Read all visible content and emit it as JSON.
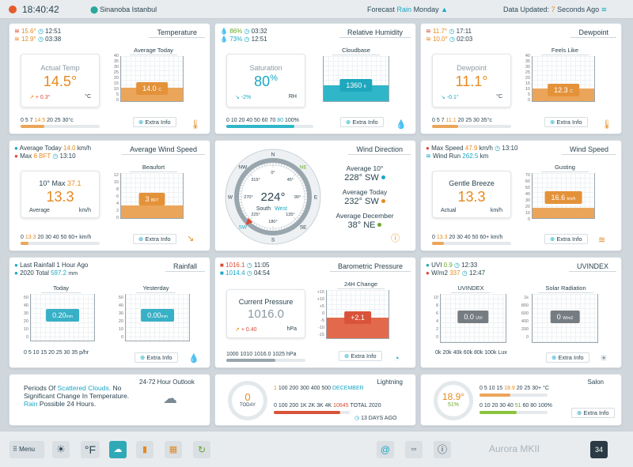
{
  "top": {
    "time": "18:40:42",
    "location": "Sinanoba Istanbul",
    "forecast_label": "Forecast",
    "forecast_value": "Rain",
    "forecast_day": "Monday",
    "updated_label": "Data Updated:",
    "updated_value": "7",
    "updated_suffix": "Seconds Ago",
    "colors": {
      "accent": "#1aa7c4",
      "status_dot": "#e35b2d"
    }
  },
  "temperature": {
    "title": "Temperature",
    "hi": "15.6°",
    "hi_time": "12:51",
    "lo": "12.9°",
    "lo_time": "03:38",
    "gauge_label": "Actual Temp",
    "gauge_value": "14.5°",
    "trend": "+ 0.3°",
    "unit": "°C",
    "sub_title": "Average Today",
    "tag": "14.0",
    "tag_unit": "C",
    "fill_frac": 0.3,
    "axis": [
      "40",
      "35",
      "30",
      "25",
      "20",
      "15",
      "10",
      "5",
      "0"
    ],
    "scale": [
      "0",
      "5",
      "7"
    ],
    "scale_hl": "14.5",
    "scale_rest": "20 25 30°c",
    "bar_frac": 0.3,
    "extra": "Extra Info",
    "icon": "thermometer-icon"
  },
  "humidity": {
    "title": "Relative Humidity",
    "hi": "86%",
    "hi_time": "03:32",
    "lo": "73%",
    "lo_time": "12:51",
    "gauge_label": "Saturation",
    "gauge_value": "80",
    "gauge_pct": "%",
    "trend": "-2%",
    "unit": "RH",
    "sub_title": "Cloudbase",
    "tag": "1360",
    "tag_unit": "ft",
    "fill_frac": 0.35,
    "axis": [
      "",
      "",
      "",
      "",
      "",
      "",
      "",
      "",
      ""
    ],
    "scale": "0 10 20 40 50 60 70",
    "scale_hl": "80",
    "scale_rest": "100%",
    "bar_frac": 0.78,
    "extra": "Extra Info"
  },
  "dewpoint": {
    "title": "Dewpoint",
    "hi": "11.7°",
    "hi_time": "17:11",
    "lo": "10.0°",
    "lo_time": "02:03",
    "gauge_label": "Dewpoint",
    "gauge_value": "11.1°",
    "trend": "-0.1°",
    "unit": "°C",
    "sub_title": "Feels Like",
    "tag": "12.3",
    "tag_unit": "C",
    "fill_frac": 0.28,
    "axis": [
      "40",
      "35",
      "30",
      "25",
      "20",
      "15",
      "10",
      "5",
      "0"
    ],
    "scale": "0 5 7",
    "scale_hl": "11.1",
    "scale_rest": "20 25 30 35°c",
    "bar_frac": 0.33,
    "extra": "Extra Info"
  },
  "wind": {
    "title": "Average Wind Speed",
    "avg_label": "Average Today",
    "avg_val": "14.0",
    "avg_unit": "km/h",
    "max_label": "Max",
    "max_val": "6 BFT",
    "max_time": "13:10",
    "gauge_label": "10° Max",
    "gauge_max": "37.1",
    "gauge_value": "13.3",
    "left": "Average",
    "unit": "km/h",
    "sub_title": "Beaufort",
    "tag": "3",
    "tag_unit": "BFT",
    "fill_frac": 0.28,
    "axis": [
      "12",
      "10",
      "8",
      "6",
      "4",
      "2",
      "0"
    ],
    "scale_pre": "0",
    "scale_hl": "13.3",
    "scale_rest": "20 30 40 50 60+",
    "scale_unit": "km/h",
    "bar_frac": 0.1,
    "extra": "Extra Info"
  },
  "direction": {
    "title": "Wind Direction",
    "heading": "224°",
    "dir_a": "South",
    "dir_b": "West",
    "heading_deg": 224,
    "marks": [
      "N",
      "NE",
      "E",
      "SE",
      "S",
      "SW",
      "W",
      "NW"
    ],
    "deg": [
      "0°",
      "45°",
      "90°",
      "135°",
      "180°",
      "225°",
      "270°",
      "315°"
    ],
    "r1_label": "Average 10°",
    "r1_val": "228°",
    "r1_dir": "SW",
    "r2_label": "Average Today",
    "r2_val": "232°",
    "r2_dir": "SW",
    "r3_label": "Average December",
    "r3_val": "38°",
    "r3_dir": "NE"
  },
  "speed": {
    "title": "Wind Speed",
    "max_label": "Max Speed",
    "max_val": "47.9",
    "max_unit": "km/h",
    "max_time": "13:10",
    "run_label": "Wind Run",
    "run_val": "262.5",
    "run_unit": "km",
    "gauge_label": "Gentle Breeze",
    "gauge_value": "13.3",
    "left": "Actual",
    "unit": "km/h",
    "sub_title": "Gusting",
    "tag": "16.6",
    "tag_unit": "km/h",
    "fill_frac": 0.22,
    "axis": [
      "70",
      "60",
      "50",
      "40",
      "30",
      "20",
      "10",
      "0"
    ],
    "scale_pre": "0",
    "scale_hl": "13.3",
    "scale_rest": "20 30 40 50 60+",
    "scale_unit": "km/h",
    "bar_frac": 0.15,
    "extra": "Extra Info"
  },
  "rain": {
    "title": "Rainfall",
    "last_label": "Last Rainfall",
    "last_val": "1 Hour Ago",
    "total_label": "2020 Total",
    "total_val": "597.2",
    "total_unit": "mm",
    "today_title": "Today",
    "today_tag": "0.20",
    "today_unit": "mm",
    "yest_title": "Yesterday",
    "yest_tag": "0.00",
    "yest_unit": "mm",
    "axis": [
      "50",
      "40",
      "30",
      "20",
      "10",
      "0"
    ],
    "scale": "0 5 10 15 20 25 30 35",
    "scale_unit": "p/hr",
    "extra": "Extra Info"
  },
  "pressure": {
    "title": "Barometric Pressure",
    "hi": "1016.1",
    "hi_time": "11:05",
    "lo": "1014.4",
    "lo_time": "04:54",
    "gauge_label": "Current Pressure",
    "gauge_value": "1016.0",
    "trend": "+ 0.40",
    "unit": "hPa",
    "sub_title": "24H Change",
    "tag": "+2.1",
    "fill_frac": 0.42,
    "axis": [
      "+15",
      "+10",
      "+5",
      "0",
      "-5",
      "-10",
      "-15"
    ],
    "scale": "1000 1010",
    "scale_hl": "1016.0",
    "scale_rest": "1025",
    "scale_unit": "hPa",
    "bar_frac": 0.62,
    "extra": "Extra Info"
  },
  "uv": {
    "title": "UVINDEX",
    "uvi_label": "UVI",
    "uvi_val": "0.9",
    "uvi_time": "12:33",
    "wm_label": "W/m2",
    "wm_val": "337",
    "wm_time": "12:47",
    "uv_title": "UVINDEX",
    "uv_tag": "0.0",
    "uv_unit": "UVI",
    "solar_title": "Solar Radiation",
    "solar_tag": "0",
    "solar_unit": "W/m2",
    "axis_uv": [
      "10",
      "8",
      "6",
      "4",
      "2",
      "0"
    ],
    "axis_solar": [
      "1k",
      "800",
      "600",
      "400",
      "200",
      "0"
    ],
    "scale": "0k 20k 40k 60k 80k 100k",
    "scale_unit": "Lux",
    "extra": "Extra Info"
  },
  "outlook": {
    "title": "24-72 Hour Outlook",
    "p1": "Periods Of",
    "p2": "Scattered Clouds.",
    "p3": "No Significant Change In Temperature.",
    "p4": "Rain",
    "p5": "Possible 24 Hours."
  },
  "lightning": {
    "title": "Lightning",
    "count": "0",
    "today": "TODAY",
    "r1_pre": "1",
    "r1": "100 200 300 400 500",
    "r1_month": "DECEMBER",
    "r2": "0 100 200 1K 2K 3K 4K",
    "r2_hl": "10645",
    "r2_year": "TOTAL 2020",
    "ago": "13 DAYS AGO",
    "bar_frac": 0.88
  },
  "salon": {
    "title": "Salon",
    "temp": "18.9°",
    "hum": "51%",
    "r1_pre": "0 5 10 15",
    "r1_hl": "18.9",
    "r1_rest": "20 25 30+ °C",
    "r2_pre": "0 10 20 30 40",
    "r2_hl": "51",
    "r2_rest": "60 80 100%",
    "bar1_frac": 0.45,
    "bar2_frac": 0.55,
    "extra": "Extra Info"
  },
  "toolbar": {
    "menu": "Menu",
    "unit": "°F",
    "brand": "Aurora MKII",
    "badge": "34"
  }
}
